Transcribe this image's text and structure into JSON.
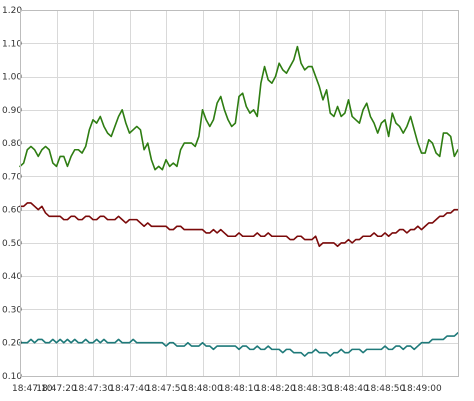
{
  "chart_data": {
    "type": "line",
    "title": "",
    "xlabel": "",
    "ylabel": "",
    "grid": true,
    "legend": "none",
    "x_start": "18:47:10",
    "x_end": "18:49:10",
    "x_ticks": [
      "18:47:10",
      "18:47:20",
      "18:47:30",
      "18:47:40",
      "18:47:50",
      "18:48:00",
      "18:48:10",
      "18:48:20",
      "18:48:30",
      "18:48:40",
      "18:48:50",
      "18:49:00"
    ],
    "ylim": [
      0.1,
      1.2
    ],
    "y_ticks": [
      "0.10",
      "0.20",
      "0.30",
      "0.40",
      "0.50",
      "0.60",
      "0.70",
      "0.80",
      "0.90",
      "1.00",
      "1.10",
      "1.20"
    ],
    "series": [
      {
        "color": "#2e7d12",
        "values": [
          0.73,
          0.74,
          0.78,
          0.79,
          0.78,
          0.76,
          0.78,
          0.79,
          0.78,
          0.74,
          0.73,
          0.76,
          0.76,
          0.73,
          0.76,
          0.78,
          0.78,
          0.77,
          0.79,
          0.84,
          0.87,
          0.86,
          0.88,
          0.85,
          0.83,
          0.82,
          0.85,
          0.88,
          0.9,
          0.86,
          0.83,
          0.84,
          0.85,
          0.84,
          0.78,
          0.8,
          0.75,
          0.72,
          0.73,
          0.72,
          0.75,
          0.73,
          0.74,
          0.73,
          0.78,
          0.8,
          0.8,
          0.8,
          0.79,
          0.82,
          0.9,
          0.87,
          0.85,
          0.87,
          0.92,
          0.94,
          0.9,
          0.87,
          0.85,
          0.86,
          0.94,
          0.95,
          0.91,
          0.89,
          0.9,
          0.88,
          0.98,
          1.03,
          0.99,
          0.98,
          1.0,
          1.04,
          1.02,
          1.01,
          1.03,
          1.05,
          1.09,
          1.04,
          1.02,
          1.03,
          1.03,
          1.0,
          0.97,
          0.93,
          0.96,
          0.89,
          0.88,
          0.91,
          0.88,
          0.89,
          0.93,
          0.88,
          0.87,
          0.86,
          0.9,
          0.92,
          0.88,
          0.86,
          0.83,
          0.86,
          0.87,
          0.82,
          0.89,
          0.86,
          0.85,
          0.83,
          0.85,
          0.88,
          0.84,
          0.8,
          0.77,
          0.77,
          0.81,
          0.8,
          0.77,
          0.76,
          0.83,
          0.83,
          0.82,
          0.76,
          0.78
        ]
      },
      {
        "color": "#7b0a0a",
        "values": [
          0.61,
          0.61,
          0.62,
          0.62,
          0.61,
          0.6,
          0.61,
          0.59,
          0.58,
          0.58,
          0.58,
          0.58,
          0.57,
          0.57,
          0.58,
          0.58,
          0.57,
          0.57,
          0.58,
          0.58,
          0.57,
          0.57,
          0.58,
          0.58,
          0.57,
          0.57,
          0.57,
          0.58,
          0.57,
          0.56,
          0.57,
          0.57,
          0.57,
          0.56,
          0.55,
          0.56,
          0.55,
          0.55,
          0.55,
          0.55,
          0.55,
          0.54,
          0.54,
          0.55,
          0.55,
          0.54,
          0.54,
          0.54,
          0.54,
          0.54,
          0.54,
          0.53,
          0.53,
          0.54,
          0.53,
          0.54,
          0.53,
          0.52,
          0.52,
          0.52,
          0.53,
          0.52,
          0.52,
          0.52,
          0.52,
          0.53,
          0.52,
          0.52,
          0.53,
          0.52,
          0.52,
          0.52,
          0.52,
          0.52,
          0.51,
          0.51,
          0.52,
          0.52,
          0.51,
          0.51,
          0.51,
          0.52,
          0.49,
          0.5,
          0.5,
          0.5,
          0.5,
          0.49,
          0.5,
          0.5,
          0.51,
          0.5,
          0.51,
          0.51,
          0.52,
          0.52,
          0.52,
          0.53,
          0.52,
          0.52,
          0.53,
          0.52,
          0.53,
          0.53,
          0.54,
          0.54,
          0.53,
          0.54,
          0.54,
          0.55,
          0.54,
          0.55,
          0.56,
          0.56,
          0.57,
          0.58,
          0.58,
          0.59,
          0.59,
          0.6,
          0.6
        ]
      },
      {
        "color": "#1f7a7a",
        "values": [
          0.2,
          0.2,
          0.2,
          0.21,
          0.2,
          0.21,
          0.21,
          0.2,
          0.2,
          0.21,
          0.2,
          0.21,
          0.2,
          0.21,
          0.2,
          0.21,
          0.2,
          0.2,
          0.21,
          0.2,
          0.2,
          0.21,
          0.2,
          0.21,
          0.2,
          0.2,
          0.2,
          0.21,
          0.2,
          0.2,
          0.2,
          0.21,
          0.2,
          0.2,
          0.2,
          0.2,
          0.2,
          0.2,
          0.2,
          0.2,
          0.19,
          0.2,
          0.2,
          0.19,
          0.19,
          0.19,
          0.2,
          0.19,
          0.19,
          0.19,
          0.2,
          0.19,
          0.19,
          0.18,
          0.19,
          0.19,
          0.19,
          0.19,
          0.19,
          0.19,
          0.18,
          0.19,
          0.19,
          0.18,
          0.18,
          0.19,
          0.18,
          0.18,
          0.19,
          0.18,
          0.18,
          0.18,
          0.17,
          0.18,
          0.18,
          0.17,
          0.17,
          0.17,
          0.16,
          0.17,
          0.17,
          0.18,
          0.17,
          0.17,
          0.17,
          0.16,
          0.17,
          0.17,
          0.18,
          0.17,
          0.17,
          0.18,
          0.18,
          0.18,
          0.17,
          0.18,
          0.18,
          0.18,
          0.18,
          0.18,
          0.19,
          0.18,
          0.18,
          0.19,
          0.19,
          0.18,
          0.19,
          0.19,
          0.18,
          0.19,
          0.2,
          0.2,
          0.2,
          0.21,
          0.21,
          0.21,
          0.21,
          0.22,
          0.22,
          0.22,
          0.23
        ]
      }
    ]
  }
}
